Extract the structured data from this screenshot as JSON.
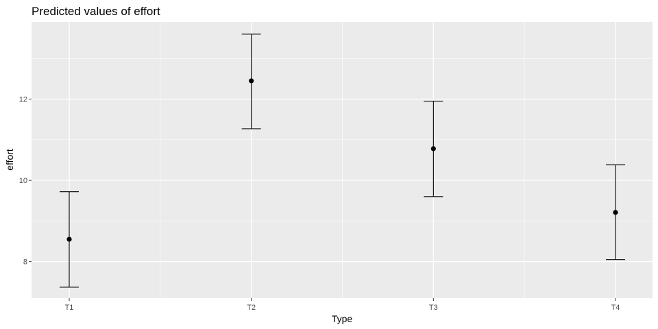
{
  "chart_data": {
    "type": "scatter",
    "title": "Predicted values of effort",
    "xlabel": "Type",
    "ylabel": "effort",
    "categories": [
      "T1",
      "T2",
      "T3",
      "T4"
    ],
    "values": [
      8.55,
      12.45,
      10.78,
      9.21
    ],
    "ci_low": [
      7.37,
      11.27,
      9.6,
      8.05
    ],
    "ci_high": [
      9.72,
      13.6,
      11.95,
      10.38
    ],
    "ylim": [
      7.1,
      13.9
    ],
    "yticks": [
      8,
      10,
      12
    ],
    "ytick_labels": [
      "8",
      "10",
      "12"
    ],
    "grid": true,
    "legend": "none",
    "colors": {
      "panel": "#ebebeb",
      "grid": "#ffffff",
      "mark": "#000000",
      "tick_text": "#4d4d4d"
    }
  }
}
